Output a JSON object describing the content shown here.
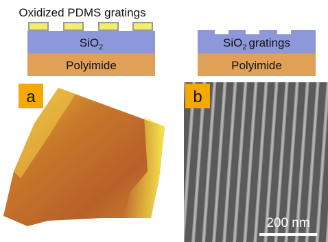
{
  "top_left": {
    "label": "Oxidized PDMS gratings",
    "layer1": {
      "text": "SiO",
      "sub": "2"
    },
    "layer2": "Polyimide"
  },
  "top_right": {
    "layer1": {
      "text": "SiO",
      "sub": "2",
      "suffix": "gratings"
    },
    "layer2": "Polyimide"
  },
  "panels": [
    {
      "label": "a"
    },
    {
      "label": "b",
      "scale_bar": "200 nm"
    }
  ]
}
